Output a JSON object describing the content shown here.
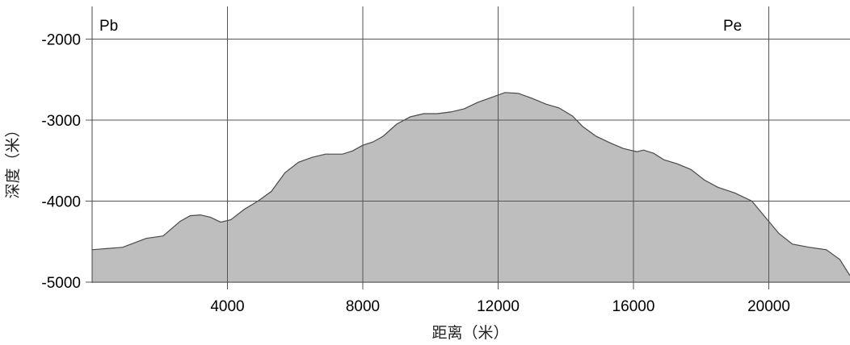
{
  "chart_data": {
    "type": "area",
    "title": "",
    "xlabel": "距离（米）",
    "ylabel": "深度（米）",
    "xlim": [
      0,
      22400
    ],
    "ylim": [
      -5000,
      -1600
    ],
    "x_ticks": [
      4000,
      8000,
      12000,
      16000,
      20000
    ],
    "x_tick_labels": [
      "4000",
      "8000",
      "12000",
      "16000",
      "20000"
    ],
    "y_ticks": [
      -2000,
      -3000,
      -4000,
      -5000
    ],
    "y_tick_labels": [
      "-2000",
      "-3000",
      "-4000",
      "-5000"
    ],
    "grid": true,
    "annotations": [
      {
        "text": "Pb",
        "position": "top-left"
      },
      {
        "text": "Pe",
        "position": "top-right"
      }
    ],
    "colors": {
      "fill": "#bebebe",
      "stroke": "#4a4a4a",
      "grid": "#555555"
    },
    "series": [
      {
        "x": [
          0,
          900,
          1600,
          2100,
          2600,
          2900,
          3200,
          3500,
          3800,
          4100,
          4500,
          4900,
          5300,
          5700,
          6100,
          6500,
          6900,
          7400,
          7700,
          8000,
          8300,
          8600,
          9000,
          9400,
          9800,
          10200,
          10600,
          11000,
          11400,
          11800,
          12200,
          12600,
          13000,
          13400,
          13800,
          14200,
          14500,
          14900,
          15300,
          15700,
          16100,
          16300,
          16600,
          16900,
          17300,
          17700,
          18100,
          18500,
          19000,
          19500,
          19900,
          20300,
          20700,
          21200,
          21700,
          22100,
          22400
        ],
        "y": [
          -4600,
          -4570,
          -4460,
          -4430,
          -4250,
          -4180,
          -4170,
          -4200,
          -4260,
          -4230,
          -4100,
          -4000,
          -3880,
          -3650,
          -3520,
          -3460,
          -3420,
          -3420,
          -3380,
          -3310,
          -3270,
          -3200,
          -3050,
          -2960,
          -2920,
          -2920,
          -2900,
          -2860,
          -2780,
          -2720,
          -2660,
          -2670,
          -2730,
          -2800,
          -2850,
          -2950,
          -3080,
          -3200,
          -3280,
          -3350,
          -3390,
          -3370,
          -3410,
          -3490,
          -3540,
          -3610,
          -3740,
          -3830,
          -3900,
          -4000,
          -4200,
          -4400,
          -4530,
          -4570,
          -4600,
          -4720,
          -4920
        ]
      }
    ]
  }
}
